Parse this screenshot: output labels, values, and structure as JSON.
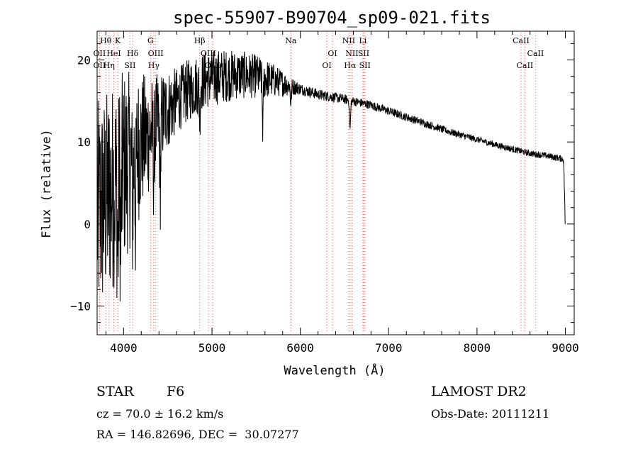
{
  "chart_data": {
    "type": "line",
    "title": "spec-55907-B90704_sp09-021.fits",
    "xlabel": "Wavelength (Å)",
    "ylabel": "Flux (relative)",
    "xlim": [
      3700,
      9100
    ],
    "ylim": [
      -13.5,
      23.5
    ],
    "x_ticks": [
      4000,
      5000,
      6000,
      7000,
      8000,
      9000
    ],
    "y_ticks": [
      -10,
      0,
      10,
      20
    ],
    "grid": false,
    "legend": "none",
    "line_color": "#000000",
    "marker_line_color": "#e06060",
    "lines": [
      {
        "label": "Hθ",
        "x": 3798,
        "row": 1
      },
      {
        "label": "K",
        "x": 3934,
        "row": 1
      },
      {
        "label": "OII",
        "x": 3727,
        "row": 2
      },
      {
        "label": "HeI",
        "x": 3889,
        "row": 2
      },
      {
        "label": "Hδ",
        "x": 4102,
        "row": 2
      },
      {
        "label": "OII",
        "x": 3727,
        "row": 3
      },
      {
        "label": "Hη",
        "x": 3835,
        "row": 3
      },
      {
        "label": "SII",
        "x": 4072,
        "row": 3
      },
      {
        "label": "G",
        "x": 4305,
        "row": 1
      },
      {
        "label": "OIII",
        "x": 4363,
        "row": 2
      },
      {
        "label": "Hγ",
        "x": 4341,
        "row": 3
      },
      {
        "label": "Hβ",
        "x": 4861,
        "row": 1
      },
      {
        "label": "OIII",
        "x": 4959,
        "row": 2
      },
      {
        "label": "OIII",
        "x": 5007,
        "row": 3
      },
      {
        "label": "Na",
        "x": 5893,
        "row": 1
      },
      {
        "label": "OI",
        "x": 6364,
        "row": 2
      },
      {
        "label": "OI",
        "x": 6300,
        "row": 3
      },
      {
        "label": "NII",
        "x": 6548,
        "row": 1
      },
      {
        "label": "Li",
        "x": 6708,
        "row": 1
      },
      {
        "label": "NII",
        "x": 6584,
        "row": 2
      },
      {
        "label": "SII",
        "x": 6717,
        "row": 2
      },
      {
        "label": "Hα",
        "x": 6563,
        "row": 3
      },
      {
        "label": "SII",
        "x": 6731,
        "row": 3
      },
      {
        "label": "CaII",
        "x": 8498,
        "row": 1
      },
      {
        "label": "CaII",
        "x": 8662,
        "row": 2
      },
      {
        "label": "CaII",
        "x": 8542,
        "row": 3
      }
    ],
    "continuum": {
      "x": [
        3700,
        3800,
        3900,
        4000,
        4100,
        4200,
        4300,
        4400,
        4500,
        4700,
        4900,
        5100,
        5300,
        5500,
        5700,
        5900,
        6200,
        6500,
        6800,
        7100,
        7400,
        7700,
        8000,
        8300,
        8600,
        8800,
        8980,
        9000
      ],
      "y": [
        1,
        3,
        5,
        7,
        8,
        10,
        11,
        12.5,
        14,
        16,
        17.5,
        18,
        18.2,
        18,
        17.5,
        16.8,
        15.8,
        15.2,
        14.5,
        13.4,
        12.3,
        11.2,
        10.3,
        9.4,
        8.6,
        8.3,
        7.9,
        0
      ]
    },
    "noise": {
      "x": [
        3700,
        4000,
        4300,
        4600,
        5000,
        5600,
        6000,
        6700,
        8000,
        9000
      ],
      "amp": [
        14,
        12,
        7,
        4,
        3.5,
        2.5,
        0.7,
        0.55,
        0.4,
        0.4
      ]
    },
    "absorption": [
      {
        "x": 3934,
        "depth": 10
      },
      {
        "x": 3968,
        "depth": 9
      },
      {
        "x": 4102,
        "depth": 6
      },
      {
        "x": 4135,
        "depth": 7
      },
      {
        "x": 4341,
        "depth": 5
      },
      {
        "x": 4415,
        "depth": 8
      },
      {
        "x": 4861,
        "depth": 4
      },
      {
        "x": 5575,
        "depth": 6
      },
      {
        "x": 5893,
        "depth": 2
      },
      {
        "x": 6563,
        "depth": 3.5
      }
    ]
  },
  "info": {
    "object_class": "STAR",
    "subclass": "F6",
    "redshift": "cz = 70.0 ± 16.2 km/s",
    "coords": "RA = 146.82696, DEC =  30.07277",
    "survey": "LAMOST DR2",
    "obs_date": "Obs-Date: 20111211"
  }
}
